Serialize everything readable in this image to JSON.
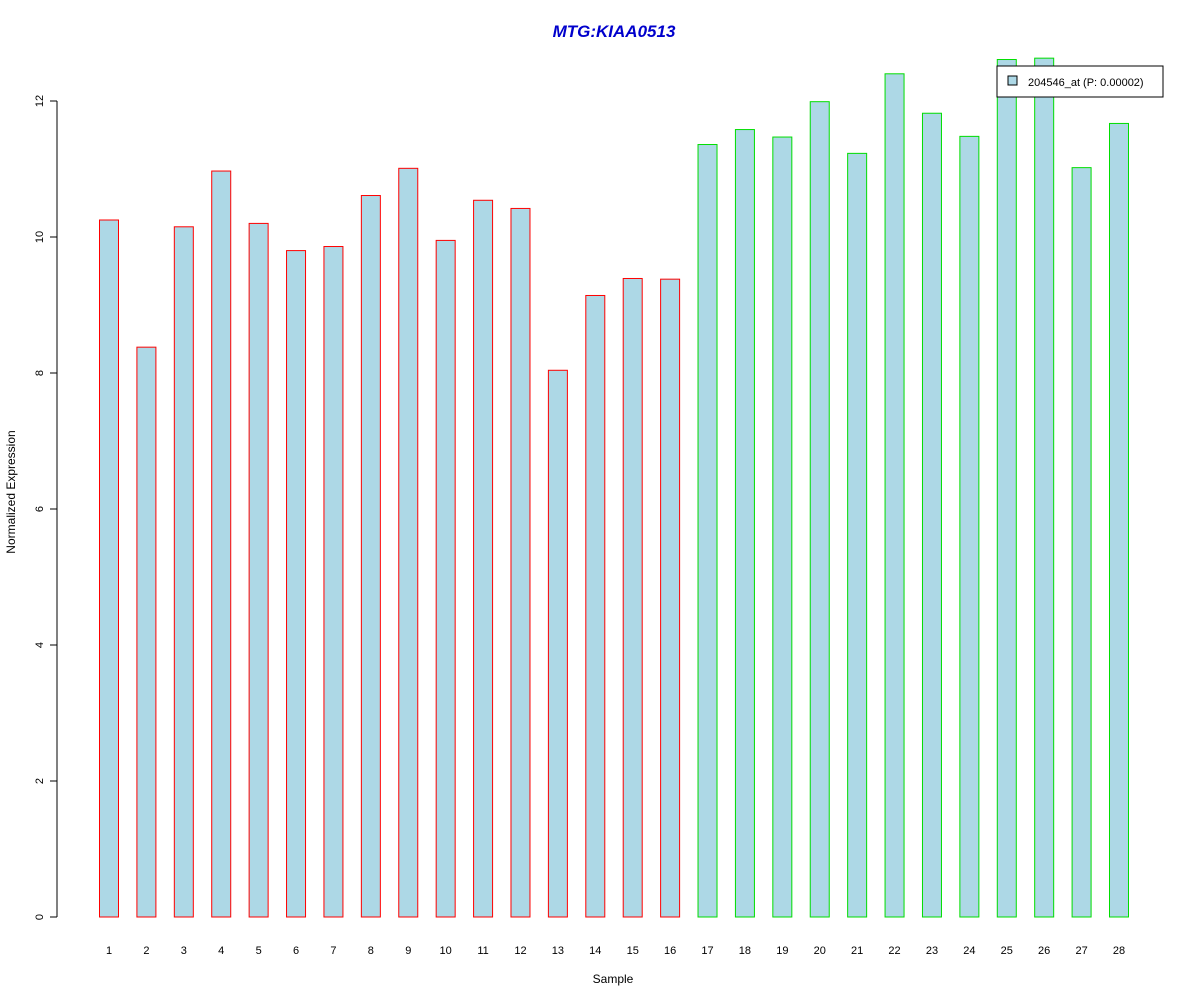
{
  "chart_data": {
    "type": "bar",
    "title": "MTG:KIAA0513",
    "xlabel": "Sample",
    "ylabel": "Normalized Expression",
    "categories": [
      "1",
      "2",
      "3",
      "4",
      "5",
      "6",
      "7",
      "8",
      "9",
      "10",
      "11",
      "12",
      "13",
      "14",
      "15",
      "16",
      "17",
      "18",
      "19",
      "20",
      "21",
      "22",
      "23",
      "24",
      "25",
      "26",
      "27",
      "28"
    ],
    "series": [
      {
        "name": "204546_at (P: 0.00002)",
        "values": [
          10.25,
          8.38,
          10.15,
          10.97,
          10.2,
          9.8,
          9.86,
          10.61,
          11.01,
          9.95,
          10.54,
          10.42,
          8.04,
          9.14,
          9.39,
          9.38,
          11.36,
          11.58,
          11.47,
          11.99,
          11.23,
          12.4,
          11.82,
          11.48,
          12.61,
          12.63,
          11.02,
          11.67
        ]
      }
    ],
    "group_colors": [
      "#ff0000",
      "#ff0000",
      "#ff0000",
      "#ff0000",
      "#ff0000",
      "#ff0000",
      "#ff0000",
      "#ff0000",
      "#ff0000",
      "#ff0000",
      "#ff0000",
      "#ff0000",
      "#ff0000",
      "#ff0000",
      "#ff0000",
      "#ff0000",
      "#00dd00",
      "#00dd00",
      "#00dd00",
      "#00dd00",
      "#00dd00",
      "#00dd00",
      "#00dd00",
      "#00dd00",
      "#00dd00",
      "#00dd00",
      "#00dd00",
      "#00dd00"
    ],
    "yticks": [
      "0",
      "2",
      "4",
      "6",
      "8",
      "10",
      "12"
    ],
    "ylim": [
      0,
      12.63
    ],
    "legend_position": "top-right",
    "grid": false,
    "bar_fill": "#add8e6",
    "title_color": "#0000cc"
  }
}
